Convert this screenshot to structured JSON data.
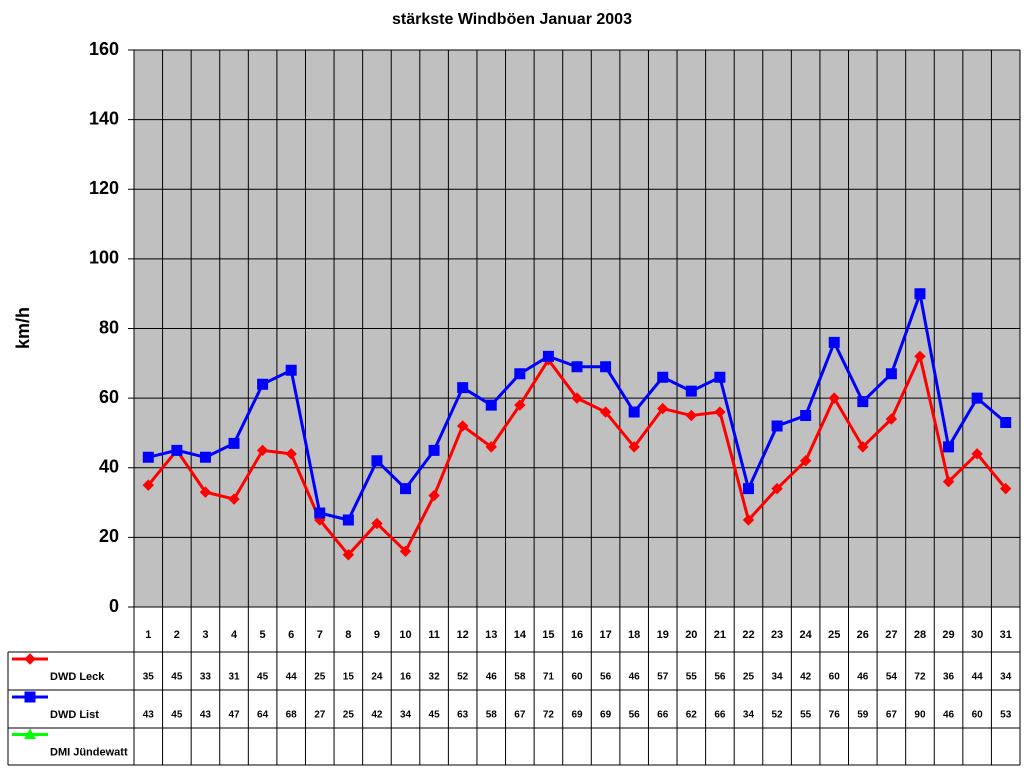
{
  "chart_data": {
    "type": "line",
    "title": "stärkste Windböen Januar 2003",
    "y_label": "km/h",
    "categories": [
      1,
      2,
      3,
      4,
      5,
      6,
      7,
      8,
      9,
      10,
      11,
      12,
      13,
      14,
      15,
      16,
      17,
      18,
      19,
      20,
      21,
      22,
      23,
      24,
      25,
      26,
      27,
      28,
      29,
      30,
      31
    ],
    "series": [
      {
        "name": "DWD Leck",
        "color": "#ff0000",
        "marker": "diamond",
        "values": [
          35,
          45,
          33,
          31,
          45,
          44,
          25,
          15,
          24,
          16,
          32,
          52,
          46,
          58,
          71,
          60,
          56,
          46,
          57,
          55,
          56,
          25,
          34,
          42,
          60,
          46,
          54,
          72,
          36,
          44,
          34
        ]
      },
      {
        "name": "DWD List",
        "color": "#0000ff",
        "marker": "square",
        "values": [
          43,
          45,
          43,
          47,
          64,
          68,
          27,
          25,
          42,
          34,
          45,
          63,
          58,
          67,
          72,
          69,
          69,
          56,
          66,
          62,
          66,
          34,
          52,
          55,
          76,
          59,
          67,
          90,
          46,
          60,
          53
        ]
      },
      {
        "name": "DMI Jündewatt",
        "color": "#00ff00",
        "marker": "triangle",
        "values": [
          null,
          null,
          null,
          null,
          null,
          null,
          null,
          null,
          null,
          null,
          null,
          null,
          null,
          null,
          null,
          null,
          null,
          null,
          null,
          null,
          null,
          null,
          null,
          null,
          null,
          null,
          null,
          null,
          null,
          null,
          null
        ]
      }
    ],
    "ylim": [
      0,
      160
    ],
    "yticks": [
      0,
      20,
      40,
      60,
      80,
      100,
      120,
      140,
      160
    ],
    "grid": true,
    "plot_background": "#c0c0c0"
  }
}
